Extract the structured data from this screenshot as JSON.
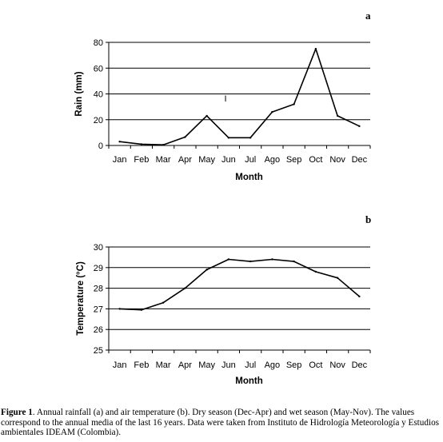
{
  "chart_data": [
    {
      "type": "line",
      "panel": "a",
      "ylabel": "Rain (mm)",
      "xlabel": "Month",
      "ylim": [
        0,
        80
      ],
      "yticks": [
        0,
        20,
        40,
        60,
        80
      ],
      "categories": [
        "Jan",
        "Feb",
        "Mar",
        "Apr",
        "May",
        "Jun",
        "Jul",
        "Ago",
        "Sep",
        "Oct",
        "Nov",
        "Dec"
      ],
      "values": [
        3,
        1,
        0.5,
        6.5,
        23,
        6,
        6,
        26,
        32,
        75,
        23,
        15
      ],
      "annotation": "I",
      "grid": "horizontal",
      "color": "#000000"
    },
    {
      "type": "line",
      "panel": "b",
      "ylabel": "Temperature (°C)",
      "xlabel": "Month",
      "ylim": [
        25,
        30
      ],
      "yticks": [
        25,
        26,
        27,
        28,
        29,
        30
      ],
      "categories": [
        "Jan",
        "Feb",
        "Mar",
        "Apr",
        "May",
        "Jun",
        "Jul",
        "Ago",
        "Sep",
        "Oct",
        "Nov",
        "Dec"
      ],
      "values": [
        27.0,
        26.95,
        27.3,
        28.0,
        28.9,
        29.4,
        29.3,
        29.4,
        29.3,
        28.8,
        28.5,
        27.6
      ],
      "grid": "horizontal",
      "color": "#000000"
    }
  ],
  "caption": {
    "label": "Figure 1",
    "text": ". Annual rainfall (a) and air temperature (b). Dry season (Dec-Apr) and wet season (May-Nov). The values correspond to the annual media of the last 16 years. Data were taken from Instituto de Hidrología Meteorología y Estudios ambientales IDEAM (Colombia)."
  }
}
